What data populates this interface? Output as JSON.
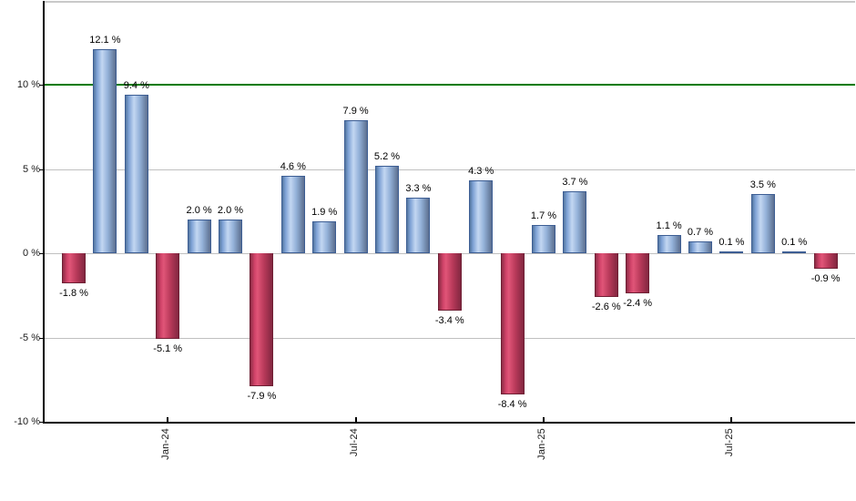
{
  "chart_data": {
    "type": "bar",
    "title": "",
    "xlabel": "",
    "ylabel": "",
    "unit": "%",
    "values": [
      -1.8,
      12.1,
      9.4,
      -5.1,
      2.0,
      2.0,
      -7.9,
      4.6,
      1.9,
      7.9,
      5.2,
      3.3,
      -3.4,
      4.3,
      -8.4,
      1.7,
      3.7,
      -2.6,
      -2.4,
      1.1,
      0.7,
      0.1,
      3.5,
      0.1,
      -0.9
    ],
    "bar_labels": [
      "-1.8 %",
      "12.1 %",
      "9.4 %",
      "-5.1 %",
      "2.0 %",
      "2.0 %",
      "-7.9 %",
      "4.6 %",
      "1.9 %",
      "7.9 %",
      "5.2 %",
      "3.3 %",
      "-3.4 %",
      "4.3 %",
      "-8.4 %",
      "1.7 %",
      "3.7 %",
      "-2.6 %",
      "-2.4 %",
      "1.1 %",
      "0.7 %",
      "0.1 %",
      "3.5 %",
      "0.1 %",
      "-0.9 %"
    ],
    "x_ticks": [
      {
        "index": 3,
        "label": "Jan-24"
      },
      {
        "index": 9,
        "label": "Jul-24"
      },
      {
        "index": 15,
        "label": "Jan-25"
      },
      {
        "index": 21,
        "label": "Jul-25"
      }
    ],
    "y_ticks": [
      {
        "value": 10,
        "label": "10 %"
      },
      {
        "value": 5,
        "label": "5 %"
      },
      {
        "value": 0,
        "label": "0 %"
      },
      {
        "value": -5,
        "label": "-5 %"
      },
      {
        "value": -10,
        "label": "-10 %"
      }
    ],
    "grid_values": [
      5,
      0,
      -5
    ],
    "reference_line_value": 10,
    "ylim": [
      -10,
      15
    ],
    "legend": null,
    "grid": true,
    "colors": {
      "reference_line": "#007b00",
      "grid": "#c0c0c0",
      "axis": "#000000",
      "plot_top_border": "#c9c9c9",
      "positive_edge": "#3d5e94",
      "negative_edge": "#6f1f34",
      "positive_gradient": [
        {
          "color": "#54779f",
          "pct": 0
        },
        {
          "color": "#7ca0d4",
          "pct": 14
        },
        {
          "color": "#c3d7f2",
          "pct": 38
        },
        {
          "color": "#93b1d8",
          "pct": 64
        },
        {
          "color": "#5c6f8f",
          "pct": 100
        }
      ],
      "negative_gradient": [
        {
          "color": "#8e2d46",
          "pct": 0
        },
        {
          "color": "#d2446a",
          "pct": 20
        },
        {
          "color": "#e05578",
          "pct": 32
        },
        {
          "color": "#b93a5a",
          "pct": 62
        },
        {
          "color": "#822740",
          "pct": 100
        }
      ]
    }
  },
  "layout_constants_note": "geometry only, no hidden data"
}
